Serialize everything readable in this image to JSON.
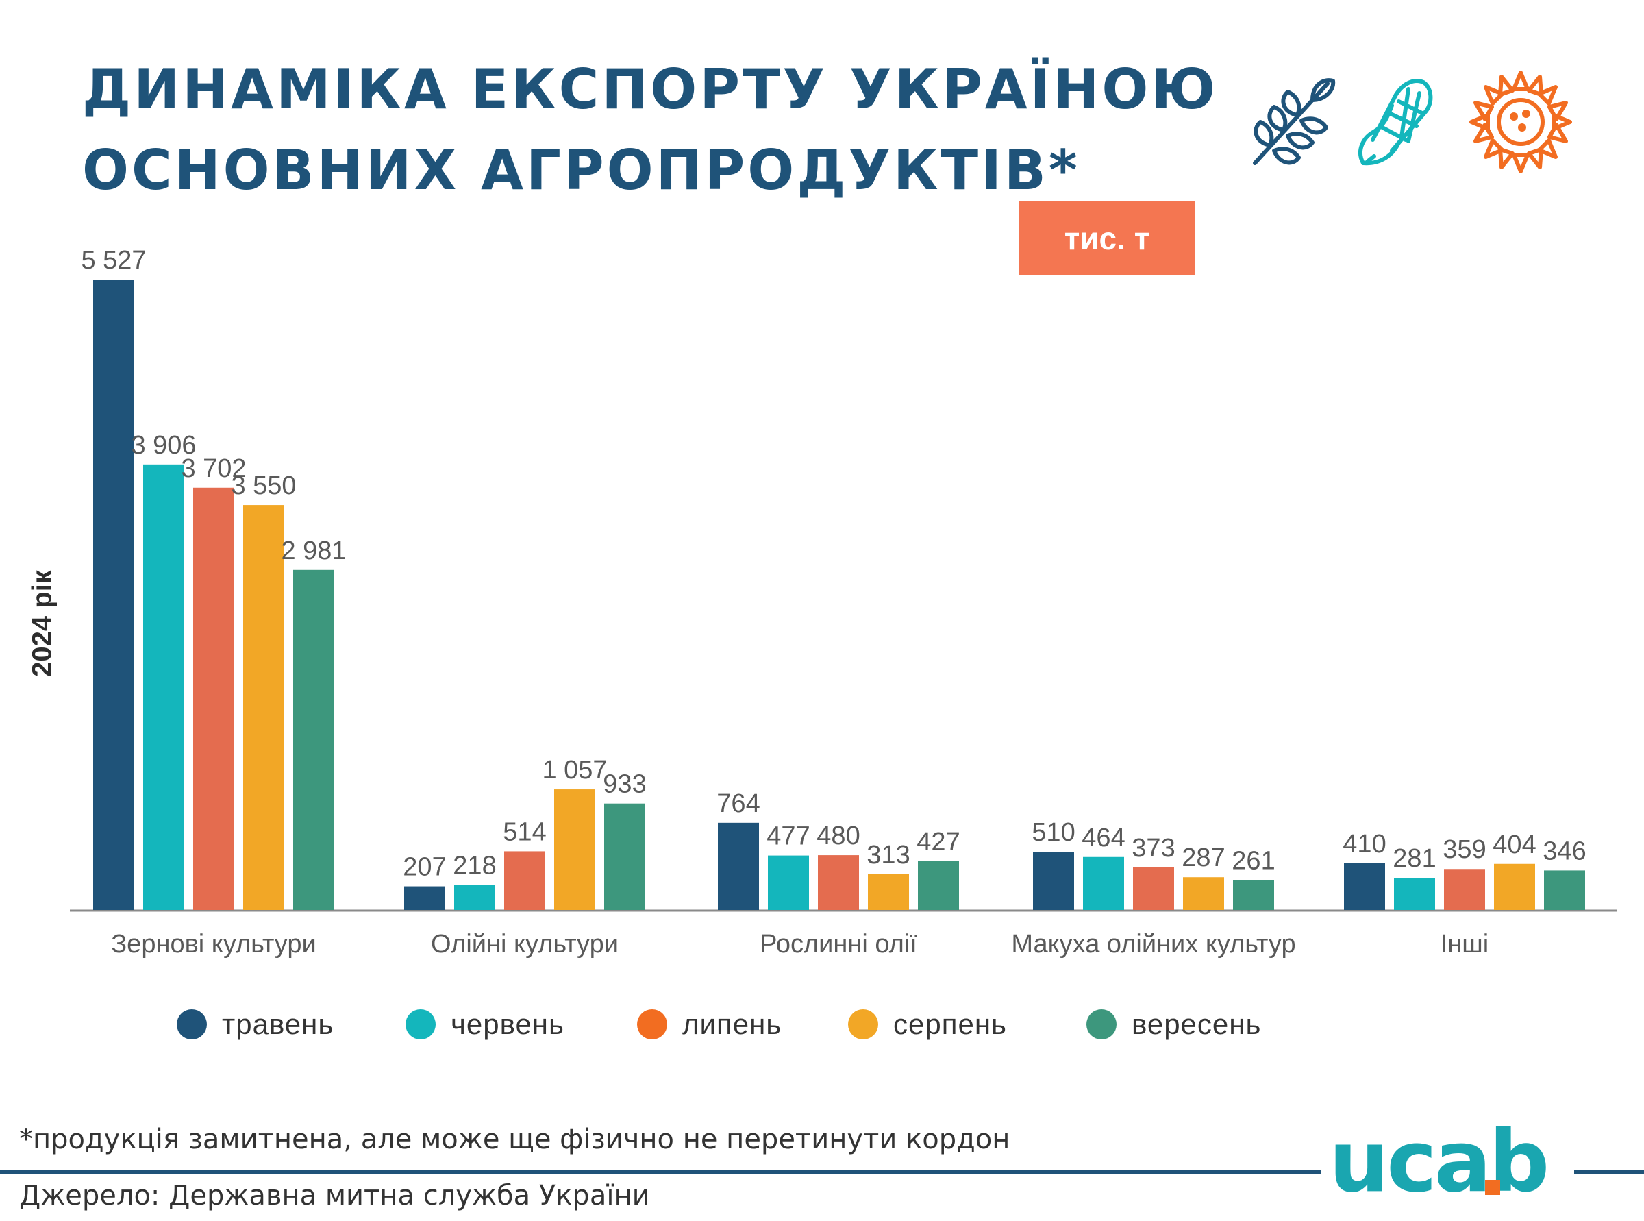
{
  "title_lines": [
    "ДИНАМІКА ЕКСПОРТУ УКРАЇНОЮ",
    "ОСНОВНИХ АГРОПРОДУКТІВ*"
  ],
  "unit": "тис. т",
  "year_label": "2024 рік",
  "footnote": "*продукція замитнена, але може ще фізично не перетинути кордон",
  "source": "Джерело: Державна митна служба України",
  "logo_text": "ucab",
  "icons": [
    "wheat-icon",
    "corn-icon",
    "sunflower-icon"
  ],
  "colors": {
    "title": "#1f5379",
    "badge": "#f47651",
    "travnen": "#1f5379",
    "cherven": "#14b6bc",
    "lypen": "#e46c4f",
    "serpen": "#f2a726",
    "veresen": "#3d977d",
    "wheat_icon": "#1f5379",
    "corn_icon": "#14b6bc",
    "sunflower_icon": "#f26d21"
  },
  "chart_data": {
    "type": "bar",
    "categories": [
      "Зернові культури",
      "Олійні культури",
      "Рослинні олії",
      "Макуха олійних культур",
      "Інші"
    ],
    "series": [
      {
        "name": "травень",
        "color": "#1f5379",
        "values": [
          5527,
          207,
          764,
          510,
          410
        ],
        "labels": [
          "5 527",
          "207",
          "764",
          "510",
          "410"
        ]
      },
      {
        "name": "червень",
        "color": "#14b6bc",
        "values": [
          3906,
          218,
          477,
          464,
          281
        ],
        "labels": [
          "3 906",
          "218",
          "477",
          "464",
          "281"
        ]
      },
      {
        "name": "липень",
        "color": "#e46c4f",
        "values": [
          3702,
          514,
          480,
          373,
          359
        ],
        "labels": [
          "3 702",
          "514",
          "480",
          "373",
          "359"
        ]
      },
      {
        "name": "серпень",
        "color": "#f2a726",
        "values": [
          3550,
          1057,
          313,
          287,
          404
        ],
        "labels": [
          "3 550",
          "1 057",
          "313",
          "287",
          "404"
        ]
      },
      {
        "name": "вересень",
        "color": "#3d977d",
        "values": [
          2981,
          933,
          427,
          261,
          346
        ],
        "labels": [
          "2 981",
          "933",
          "427",
          "261",
          "346"
        ]
      }
    ],
    "ylim": [
      0,
      5527
    ],
    "legend": "bottom",
    "grid": false
  }
}
